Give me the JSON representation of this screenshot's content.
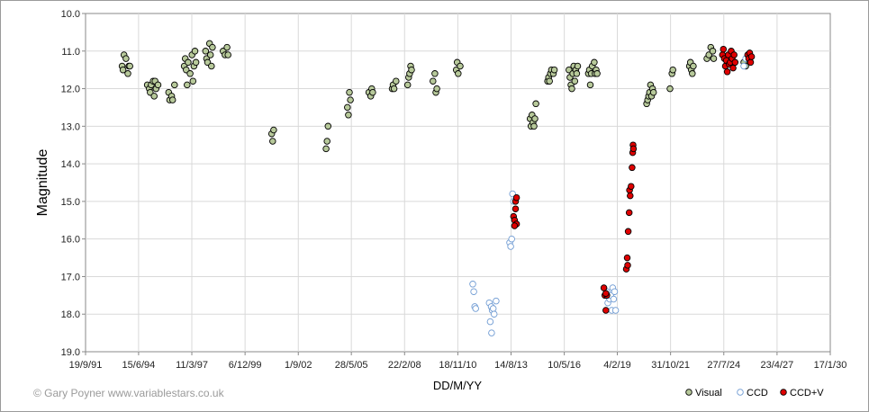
{
  "chart_data": {
    "type": "scatter",
    "title": "",
    "xlabel": "DD/M/YY",
    "ylabel": "Magnitude",
    "ylim": [
      10.0,
      19.0
    ],
    "y_inverted": true,
    "y_ticks": [
      "10.0",
      "11.0",
      "12.0",
      "13.0",
      "14.0",
      "15.0",
      "16.0",
      "17.0",
      "18.0",
      "19.0"
    ],
    "x_range_years": [
      1991.72,
      2030.05
    ],
    "x_ticks": [
      {
        "label": "19/9/91",
        "year": 1991.72
      },
      {
        "label": "15/6/94",
        "year": 1994.45
      },
      {
        "label": "11/3/97",
        "year": 1997.19
      },
      {
        "label": "6/12/99",
        "year": 1999.93
      },
      {
        "label": "1/9/02",
        "year": 2002.67
      },
      {
        "label": "28/5/05",
        "year": 2005.4
      },
      {
        "label": "22/2/08",
        "year": 2008.14
      },
      {
        "label": "18/11/10",
        "year": 2010.88
      },
      {
        "label": "14/8/13",
        "year": 2013.62
      },
      {
        "label": "10/5/16",
        "year": 2016.36
      },
      {
        "label": "4/2/19",
        "year": 2019.09
      },
      {
        "label": "31/10/21",
        "year": 2021.83
      },
      {
        "label": "27/7/24",
        "year": 2024.57
      },
      {
        "label": "23/4/27",
        "year": 2027.31
      },
      {
        "label": "17/1/30",
        "year": 2030.05
      }
    ],
    "legend": {
      "position": "bottom-right",
      "entries": [
        "Visual",
        "CCD",
        "CCD+V"
      ]
    },
    "colors": {
      "visual_fill": "#b7c99a",
      "visual_stroke": "#000000",
      "ccd_stroke": "#6f9bd3",
      "ccdv_fill": "#e00000",
      "ccdv_stroke": "#000000",
      "grid": "#d9d9d9"
    },
    "series": [
      {
        "name": "Visual",
        "style": "visual",
        "points": [
          [
            1993.6,
            11.4
          ],
          [
            1993.7,
            11.1
          ],
          [
            1993.8,
            11.2
          ],
          [
            1993.9,
            11.6
          ],
          [
            1993.95,
            11.4
          ],
          [
            1993.65,
            11.5
          ],
          [
            1994.0,
            11.4
          ],
          [
            1994.9,
            11.9
          ],
          [
            1995.0,
            12.0
          ],
          [
            1995.05,
            12.1
          ],
          [
            1995.1,
            11.9
          ],
          [
            1995.2,
            11.8
          ],
          [
            1995.25,
            12.2
          ],
          [
            1995.3,
            11.8
          ],
          [
            1995.35,
            12.0
          ],
          [
            1995.45,
            11.9
          ],
          [
            1996.0,
            12.1
          ],
          [
            1996.05,
            12.3
          ],
          [
            1996.15,
            12.2
          ],
          [
            1996.2,
            12.3
          ],
          [
            1996.3,
            11.9
          ],
          [
            1996.8,
            11.4
          ],
          [
            1996.85,
            11.2
          ],
          [
            1996.9,
            11.5
          ],
          [
            1996.95,
            11.9
          ],
          [
            1997.0,
            11.3
          ],
          [
            1997.1,
            11.6
          ],
          [
            1997.2,
            11.1
          ],
          [
            1997.25,
            11.8
          ],
          [
            1997.3,
            11.4
          ],
          [
            1997.35,
            11.0
          ],
          [
            1997.4,
            11.3
          ],
          [
            1997.9,
            11.0
          ],
          [
            1997.95,
            11.2
          ],
          [
            1998.0,
            11.3
          ],
          [
            1998.1,
            10.8
          ],
          [
            1998.15,
            11.1
          ],
          [
            1998.2,
            11.4
          ],
          [
            1998.25,
            10.9
          ],
          [
            1998.8,
            11.0
          ],
          [
            1998.9,
            11.1
          ],
          [
            1999.0,
            10.9
          ],
          [
            1999.05,
            11.1
          ],
          [
            2001.3,
            13.2
          ],
          [
            2001.35,
            13.4
          ],
          [
            2001.4,
            13.1
          ],
          [
            2004.1,
            13.6
          ],
          [
            2004.15,
            13.4
          ],
          [
            2004.2,
            13.0
          ],
          [
            2005.2,
            12.5
          ],
          [
            2005.25,
            12.7
          ],
          [
            2005.3,
            12.1
          ],
          [
            2005.35,
            12.3
          ],
          [
            2006.3,
            12.1
          ],
          [
            2006.4,
            12.2
          ],
          [
            2006.45,
            12.0
          ],
          [
            2006.5,
            12.1
          ],
          [
            2007.5,
            12.0
          ],
          [
            2007.55,
            11.9
          ],
          [
            2007.6,
            12.0
          ],
          [
            2007.7,
            11.8
          ],
          [
            2008.3,
            11.9
          ],
          [
            2008.35,
            11.7
          ],
          [
            2008.4,
            11.6
          ],
          [
            2008.45,
            11.4
          ],
          [
            2008.5,
            11.5
          ],
          [
            2009.6,
            11.8
          ],
          [
            2009.7,
            11.6
          ],
          [
            2009.75,
            12.1
          ],
          [
            2009.8,
            12.0
          ],
          [
            2010.8,
            11.5
          ],
          [
            2010.85,
            11.3
          ],
          [
            2010.9,
            11.6
          ],
          [
            2011.0,
            11.4
          ],
          [
            2014.6,
            12.8
          ],
          [
            2014.65,
            13.0
          ],
          [
            2014.7,
            12.7
          ],
          [
            2014.75,
            12.9
          ],
          [
            2014.8,
            13.0
          ],
          [
            2014.85,
            12.8
          ],
          [
            2014.9,
            12.4
          ],
          [
            2015.5,
            11.8
          ],
          [
            2015.55,
            11.7
          ],
          [
            2015.6,
            11.8
          ],
          [
            2015.65,
            11.6
          ],
          [
            2015.7,
            11.5
          ],
          [
            2015.8,
            11.6
          ],
          [
            2015.85,
            11.5
          ],
          [
            2016.6,
            11.5
          ],
          [
            2016.65,
            11.7
          ],
          [
            2016.7,
            11.9
          ],
          [
            2016.75,
            12.0
          ],
          [
            2016.8,
            11.6
          ],
          [
            2016.85,
            11.4
          ],
          [
            2016.9,
            11.8
          ],
          [
            2016.95,
            11.5
          ],
          [
            2017.0,
            11.6
          ],
          [
            2017.05,
            11.4
          ],
          [
            2017.6,
            11.6
          ],
          [
            2017.65,
            11.5
          ],
          [
            2017.7,
            11.9
          ],
          [
            2017.75,
            11.6
          ],
          [
            2017.8,
            11.4
          ],
          [
            2017.9,
            11.3
          ],
          [
            2017.95,
            11.6
          ],
          [
            2018.0,
            11.5
          ],
          [
            2018.05,
            11.6
          ],
          [
            2020.6,
            12.4
          ],
          [
            2020.65,
            12.3
          ],
          [
            2020.7,
            12.2
          ],
          [
            2020.75,
            12.1
          ],
          [
            2020.8,
            11.9
          ],
          [
            2020.85,
            12.2
          ],
          [
            2020.9,
            12.0
          ],
          [
            2020.95,
            12.1
          ],
          [
            2021.8,
            12.0
          ],
          [
            2021.9,
            11.6
          ],
          [
            2021.95,
            11.5
          ],
          [
            2022.8,
            11.4
          ],
          [
            2022.85,
            11.3
          ],
          [
            2022.9,
            11.5
          ],
          [
            2022.95,
            11.6
          ],
          [
            2023.0,
            11.4
          ],
          [
            2023.7,
            11.2
          ],
          [
            2023.8,
            11.1
          ],
          [
            2023.9,
            10.9
          ],
          [
            2024.0,
            11.0
          ],
          [
            2024.05,
            11.2
          ],
          [
            2025.6,
            11.3
          ],
          [
            2025.7,
            11.4
          ],
          [
            2025.8,
            11.2
          ]
        ]
      },
      {
        "name": "CCD",
        "style": "ccd",
        "points": [
          [
            2011.65,
            17.2
          ],
          [
            2011.7,
            17.4
          ],
          [
            2011.75,
            17.8
          ],
          [
            2011.8,
            17.85
          ],
          [
            2012.5,
            17.7
          ],
          [
            2012.55,
            18.2
          ],
          [
            2012.6,
            17.8
          ],
          [
            2012.62,
            18.5
          ],
          [
            2012.65,
            17.9
          ],
          [
            2012.7,
            17.85
          ],
          [
            2012.75,
            18.0
          ],
          [
            2012.85,
            17.65
          ],
          [
            2013.55,
            16.1
          ],
          [
            2013.6,
            16.2
          ],
          [
            2013.65,
            16.0
          ],
          [
            2013.7,
            14.8
          ],
          [
            2013.75,
            15.0
          ],
          [
            2018.55,
            17.4
          ],
          [
            2018.6,
            17.7
          ],
          [
            2018.65,
            17.55
          ],
          [
            2018.7,
            17.6
          ],
          [
            2018.75,
            17.5
          ],
          [
            2018.8,
            17.9
          ],
          [
            2018.85,
            17.3
          ],
          [
            2018.9,
            17.6
          ],
          [
            2018.95,
            17.4
          ],
          [
            2019.0,
            17.9
          ],
          [
            2024.7,
            11.2
          ],
          [
            2024.8,
            11.3
          ],
          [
            2025.6,
            11.4
          ],
          [
            2025.7,
            11.2
          ]
        ]
      },
      {
        "name": "CCD+V",
        "style": "ccdv",
        "points": [
          [
            2013.75,
            15.4
          ],
          [
            2013.8,
            15.5
          ],
          [
            2013.85,
            15.2
          ],
          [
            2013.9,
            15.6
          ],
          [
            2013.85,
            15.0
          ],
          [
            2013.9,
            14.9
          ],
          [
            2013.8,
            15.65
          ],
          [
            2018.4,
            17.3
          ],
          [
            2018.45,
            17.5
          ],
          [
            2018.5,
            17.9
          ],
          [
            2018.55,
            17.5
          ],
          [
            2018.5,
            17.45
          ],
          [
            2019.55,
            16.8
          ],
          [
            2019.6,
            16.5
          ],
          [
            2019.62,
            16.7
          ],
          [
            2019.65,
            15.8
          ],
          [
            2019.7,
            15.3
          ],
          [
            2019.72,
            14.7
          ],
          [
            2019.75,
            14.85
          ],
          [
            2019.8,
            14.6
          ],
          [
            2019.85,
            14.1
          ],
          [
            2019.88,
            13.7
          ],
          [
            2019.9,
            13.5
          ],
          [
            2019.92,
            13.6
          ],
          [
            2024.5,
            11.1
          ],
          [
            2024.55,
            10.95
          ],
          [
            2024.6,
            11.2
          ],
          [
            2024.65,
            11.4
          ],
          [
            2024.7,
            11.25
          ],
          [
            2024.75,
            11.55
          ],
          [
            2024.8,
            11.1
          ],
          [
            2024.85,
            11.35
          ],
          [
            2024.9,
            11.3
          ],
          [
            2024.95,
            11.0
          ],
          [
            2025.0,
            11.2
          ],
          [
            2025.05,
            11.45
          ],
          [
            2025.1,
            11.1
          ],
          [
            2025.15,
            11.3
          ],
          [
            2025.8,
            11.1
          ],
          [
            2025.85,
            11.2
          ],
          [
            2025.9,
            11.05
          ],
          [
            2025.95,
            11.3
          ],
          [
            2026.0,
            11.15
          ]
        ]
      }
    ],
    "credit": "© Gary Poyner  www.variablestars.co.uk"
  }
}
